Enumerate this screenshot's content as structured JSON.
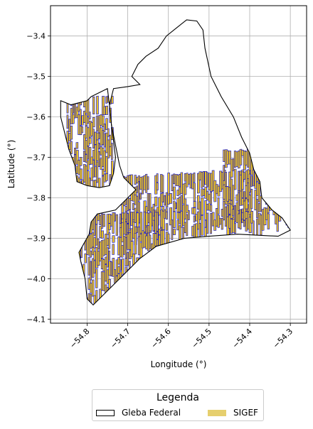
{
  "chart_data": {
    "type": "map",
    "xlabel": "Longitude (°)",
    "ylabel": "Latitude (°)",
    "xlim": [
      -54.89,
      -54.26
    ],
    "ylim": [
      -4.11,
      -3.325
    ],
    "x_ticks": [
      -54.8,
      -54.7,
      -54.6,
      -54.5,
      -54.4,
      -54.3
    ],
    "x_tick_labels": [
      "−54.8",
      "−54.7",
      "−54.6",
      "−54.5",
      "−54.4",
      "−54.3"
    ],
    "y_ticks": [
      -3.4,
      -3.5,
      -3.6,
      -3.7,
      -3.8,
      -3.9,
      -4.0,
      -4.1
    ],
    "y_tick_labels": [
      "−3.4",
      "−3.5",
      "−3.6",
      "−3.7",
      "−3.8",
      "−3.9",
      "−4.0",
      "−4.1"
    ],
    "grid": true,
    "legend_placement": "bottom-center",
    "gleba_outline": [
      [
        -54.67,
        -3.52
      ],
      [
        -54.69,
        -3.5
      ],
      [
        -54.675,
        -3.47
      ],
      [
        -54.655,
        -3.45
      ],
      [
        -54.625,
        -3.43
      ],
      [
        -54.605,
        -3.4
      ],
      [
        -54.58,
        -3.38
      ],
      [
        -54.555,
        -3.36
      ],
      [
        -54.53,
        -3.363
      ],
      [
        -54.515,
        -3.385
      ],
      [
        -54.51,
        -3.43
      ],
      [
        -54.495,
        -3.5
      ],
      [
        -54.47,
        -3.55
      ],
      [
        -54.44,
        -3.6
      ],
      [
        -54.42,
        -3.65
      ],
      [
        -54.4,
        -3.69
      ],
      [
        -54.39,
        -3.73
      ],
      [
        -54.375,
        -3.76
      ],
      [
        -54.37,
        -3.8
      ],
      [
        -54.345,
        -3.83
      ],
      [
        -54.32,
        -3.85
      ],
      [
        -54.3,
        -3.88
      ],
      [
        -54.33,
        -3.895
      ],
      [
        -54.43,
        -3.89
      ],
      [
        -54.5,
        -3.895
      ],
      [
        -54.56,
        -3.9
      ],
      [
        -54.63,
        -3.92
      ],
      [
        -54.67,
        -3.95
      ],
      [
        -54.7,
        -3.98
      ],
      [
        -54.73,
        -4.01
      ],
      [
        -54.76,
        -4.04
      ],
      [
        -54.785,
        -4.065
      ],
      [
        -54.8,
        -4.05
      ],
      [
        -54.805,
        -4.0
      ],
      [
        -54.815,
        -3.96
      ],
      [
        -54.82,
        -3.935
      ],
      [
        -54.795,
        -3.89
      ],
      [
        -54.79,
        -3.86
      ],
      [
        -54.775,
        -3.84
      ],
      [
        -54.73,
        -3.83
      ],
      [
        -54.7,
        -3.8
      ],
      [
        -54.68,
        -3.78
      ],
      [
        -54.71,
        -3.75
      ],
      [
        -54.72,
        -3.72
      ],
      [
        -54.73,
        -3.67
      ],
      [
        -54.74,
        -3.62
      ],
      [
        -54.745,
        -3.57
      ],
      [
        -54.735,
        -3.53
      ],
      [
        -54.7,
        -3.525
      ],
      [
        -54.67,
        -3.52
      ]
    ],
    "gleba_west_outline": [
      [
        -54.865,
        -3.56
      ],
      [
        -54.84,
        -3.57
      ],
      [
        -54.82,
        -3.565
      ],
      [
        -54.8,
        -3.56
      ],
      [
        -54.79,
        -3.55
      ],
      [
        -54.77,
        -3.54
      ],
      [
        -54.75,
        -3.53
      ],
      [
        -54.745,
        -3.57
      ],
      [
        -54.74,
        -3.62
      ],
      [
        -54.735,
        -3.66
      ],
      [
        -54.73,
        -3.7
      ],
      [
        -54.735,
        -3.74
      ],
      [
        -54.745,
        -3.77
      ],
      [
        -54.77,
        -3.775
      ],
      [
        -54.8,
        -3.77
      ],
      [
        -54.825,
        -3.76
      ],
      [
        -54.83,
        -3.72
      ],
      [
        -54.845,
        -3.68
      ],
      [
        -54.855,
        -3.64
      ],
      [
        -54.865,
        -3.6
      ],
      [
        -54.865,
        -3.56
      ]
    ],
    "sigef_regions": [
      {
        "lon": [
          -54.85,
          -54.74
        ],
        "lat": [
          -3.77,
          -3.56
        ]
      },
      {
        "lon": [
          -54.72,
          -54.4
        ],
        "lat": [
          -3.9,
          -3.76
        ]
      },
      {
        "lon": [
          -54.82,
          -54.6
        ],
        "lat": [
          -4.06,
          -3.85
        ]
      },
      {
        "lon": [
          -54.47,
          -54.3
        ],
        "lat": [
          -3.89,
          -3.71
        ]
      }
    ]
  },
  "colors": {
    "sigef_fill": "#e6c02a",
    "sigef_edge": "#0000cc",
    "gleba_edge": "#000000",
    "grid": "#b0b0b0"
  },
  "legend": {
    "title": "Legenda",
    "items": [
      {
        "label": "Gleba Federal"
      },
      {
        "label": "SIGEF"
      }
    ]
  }
}
